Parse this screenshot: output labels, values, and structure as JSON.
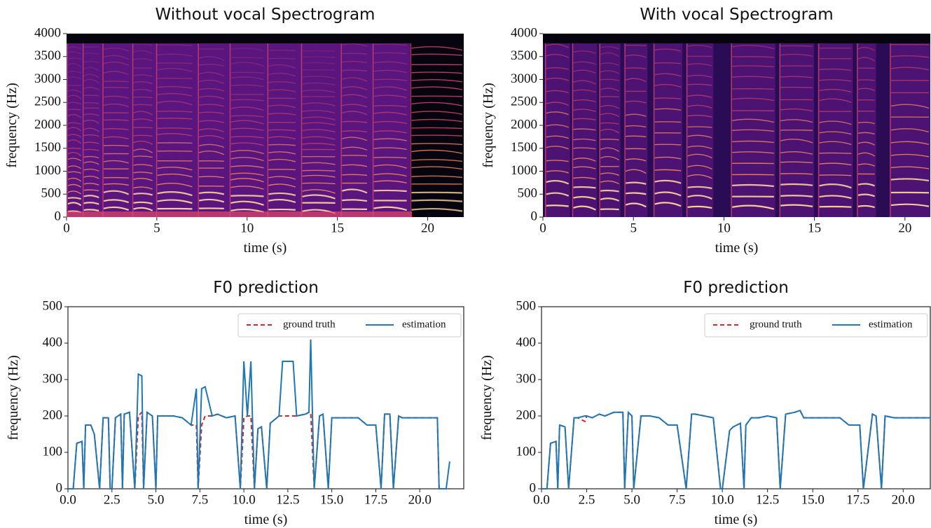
{
  "chart_data": [
    {
      "type": "spectrogram",
      "title": "Without vocal Spectrogram",
      "xlabel": "time (s)",
      "ylabel": "frequency (Hz)",
      "colormap": "magma",
      "xlim": [
        0,
        22
      ],
      "ylim": [
        0,
        4000
      ],
      "xticks": [
        0,
        5,
        10,
        15,
        20
      ],
      "yticks": [
        0,
        500,
        1000,
        1500,
        2000,
        2500,
        3000,
        3500,
        4000
      ]
    },
    {
      "type": "spectrogram",
      "title": "With vocal Spectrogram",
      "xlabel": "time (s)",
      "ylabel": "frequency (Hz)",
      "colormap": "magma",
      "xlim": [
        0,
        21.4
      ],
      "ylim": [
        0,
        4000
      ],
      "xticks": [
        0,
        5,
        10,
        15,
        20
      ],
      "yticks": [
        0,
        500,
        1000,
        1500,
        2000,
        2500,
        3000,
        3500,
        4000
      ]
    },
    {
      "type": "line",
      "title": "F0 prediction",
      "xlabel": "time (s)",
      "ylabel": "frequency (Hz)",
      "legend": "upper right",
      "xlim": [
        0,
        22.5
      ],
      "ylim": [
        0,
        500
      ],
      "xticks": [
        {
          "value": 0,
          "label": "0.0"
        },
        {
          "value": 2.5,
          "label": "2.5"
        },
        {
          "value": 5,
          "label": "5.0"
        },
        {
          "value": 7.5,
          "label": "7.5"
        },
        {
          "value": 10,
          "label": "10.0"
        },
        {
          "value": 12.5,
          "label": "12.5"
        },
        {
          "value": 15,
          "label": "15.0"
        },
        {
          "value": 17.5,
          "label": "17.5"
        },
        {
          "value": 20,
          "label": "20.0"
        }
      ],
      "yticks": [
        0,
        100,
        200,
        300,
        400,
        500
      ],
      "x": [
        0,
        0.3,
        0.5,
        0.8,
        0.9,
        1.0,
        1.3,
        1.5,
        1.8,
        2.0,
        2.3,
        2.4,
        2.5,
        2.7,
        3.0,
        3.1,
        3.2,
        3.5,
        3.8,
        4.0,
        4.2,
        4.3,
        4.5,
        4.8,
        5.0,
        5.1,
        5.5,
        6.0,
        6.5,
        7.0,
        7.3,
        7.4,
        7.6,
        7.8,
        8.2,
        8.5,
        9.0,
        9.5,
        9.8,
        10.0,
        10.2,
        10.4,
        10.6,
        10.8,
        11.0,
        11.3,
        11.5,
        12.0,
        12.2,
        12.5,
        12.8,
        13.0,
        13.5,
        13.7,
        13.8,
        14.0,
        14.3,
        14.5,
        14.8,
        15.0,
        15.5,
        16.0,
        16.5,
        17.0,
        17.5,
        17.8,
        18.0,
        18.3,
        18.5,
        18.8,
        19.0,
        19.5,
        20.0,
        20.5,
        21.0,
        21.1,
        21.5,
        21.7
      ],
      "series": [
        {
          "name": "ground truth",
          "color": "#d62728",
          "linestyle": "dashed",
          "values": [
            0,
            0,
            125,
            130,
            0,
            175,
            175,
            150,
            0,
            195,
            195,
            0,
            0,
            195,
            205,
            0,
            205,
            210,
            0,
            200,
            210,
            0,
            210,
            200,
            0,
            200,
            200,
            200,
            195,
            175,
            175,
            0,
            175,
            200,
            200,
            205,
            195,
            200,
            0,
            195,
            200,
            200,
            0,
            165,
            170,
            0,
            180,
            200,
            200,
            200,
            200,
            200,
            205,
            210,
            210,
            0,
            200,
            205,
            0,
            195,
            195,
            195,
            195,
            175,
            175,
            0,
            205,
            205,
            0,
            200,
            195,
            195,
            195,
            195,
            195,
            0,
            0,
            0
          ]
        },
        {
          "name": "estimation",
          "color": "#1f77b4",
          "linestyle": "solid",
          "values": [
            0,
            0,
            125,
            130,
            0,
            175,
            175,
            150,
            0,
            195,
            195,
            0,
            0,
            195,
            205,
            0,
            205,
            210,
            0,
            315,
            310,
            0,
            210,
            200,
            0,
            200,
            200,
            200,
            195,
            175,
            275,
            0,
            275,
            280,
            200,
            205,
            195,
            200,
            0,
            350,
            200,
            350,
            0,
            165,
            170,
            0,
            180,
            200,
            350,
            350,
            350,
            200,
            205,
            210,
            410,
            0,
            200,
            205,
            0,
            195,
            195,
            195,
            195,
            175,
            175,
            0,
            205,
            205,
            0,
            200,
            195,
            195,
            195,
            195,
            195,
            0,
            0,
            75
          ]
        }
      ]
    },
    {
      "type": "line",
      "title": "F0 prediction",
      "xlabel": "time (s)",
      "ylabel": "frequency (Hz)",
      "legend": "upper right",
      "xlim": [
        0,
        21.5
      ],
      "ylim": [
        0,
        500
      ],
      "xticks": [
        {
          "value": 0,
          "label": "0.0"
        },
        {
          "value": 2.5,
          "label": "2.5"
        },
        {
          "value": 5,
          "label": "5.0"
        },
        {
          "value": 7.5,
          "label": "7.5"
        },
        {
          "value": 10,
          "label": "10.0"
        },
        {
          "value": 12.5,
          "label": "12.5"
        },
        {
          "value": 15,
          "label": "15.0"
        },
        {
          "value": 17.5,
          "label": "17.5"
        },
        {
          "value": 20,
          "label": "20.0"
        }
      ],
      "yticks": [
        0,
        100,
        200,
        300,
        400,
        500
      ],
      "x": [
        0,
        0.3,
        0.5,
        0.8,
        0.9,
        1.0,
        1.3,
        1.5,
        1.8,
        2.0,
        2.4,
        2.5,
        2.8,
        3.0,
        3.2,
        3.5,
        4.0,
        4.5,
        4.6,
        4.8,
        5.0,
        5.1,
        5.5,
        6.0,
        6.5,
        7.0,
        7.5,
        8.0,
        8.3,
        8.5,
        9.0,
        9.5,
        9.9,
        10.0,
        10.4,
        10.6,
        11.0,
        11.2,
        11.3,
        11.6,
        12.0,
        12.5,
        13.0,
        13.2,
        13.5,
        14.0,
        14.3,
        14.5,
        15.0,
        15.5,
        16.0,
        16.5,
        17.0,
        17.6,
        17.8,
        18.3,
        18.5,
        18.8,
        19.0,
        19.5,
        20.0,
        20.5,
        21.0,
        21.5
      ],
      "series": [
        {
          "name": "ground truth",
          "color": "#d62728",
          "linestyle": "dashed",
          "values": [
            0,
            0,
            125,
            130,
            0,
            175,
            170,
            0,
            195,
            195,
            185,
            200,
            195,
            200,
            205,
            200,
            210,
            210,
            0,
            210,
            200,
            0,
            200,
            200,
            195,
            175,
            175,
            0,
            205,
            205,
            200,
            195,
            0,
            0,
            160,
            170,
            180,
            0,
            175,
            195,
            195,
            200,
            195,
            0,
            205,
            210,
            215,
            195,
            195,
            195,
            195,
            195,
            175,
            175,
            0,
            205,
            200,
            0,
            200,
            195,
            195,
            195,
            195,
            195
          ]
        },
        {
          "name": "estimation",
          "color": "#1f77b4",
          "linestyle": "solid",
          "values": [
            0,
            0,
            125,
            130,
            0,
            175,
            170,
            0,
            195,
            195,
            200,
            200,
            195,
            200,
            205,
            200,
            210,
            210,
            0,
            210,
            200,
            0,
            200,
            200,
            195,
            175,
            175,
            0,
            205,
            205,
            200,
            195,
            0,
            0,
            160,
            170,
            180,
            0,
            175,
            195,
            195,
            200,
            195,
            0,
            205,
            210,
            215,
            195,
            195,
            195,
            195,
            195,
            175,
            175,
            0,
            205,
            200,
            0,
            200,
            195,
            195,
            195,
            195,
            195
          ]
        }
      ]
    }
  ]
}
